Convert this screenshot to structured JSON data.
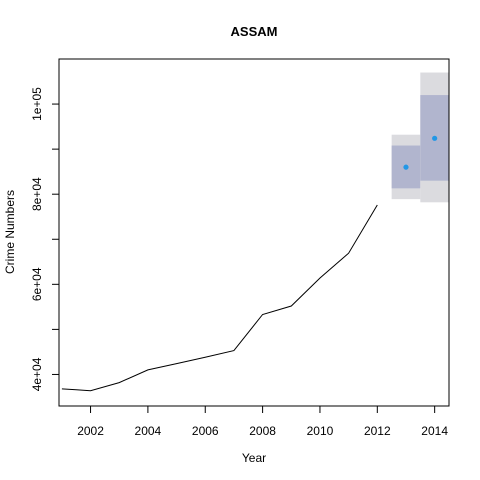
{
  "chart_data": {
    "type": "line",
    "title": "ASSAM",
    "xlabel": "Year",
    "ylabel": "Crime Numbers",
    "xlim": [
      2000.9,
      2014.5
    ],
    "ylim": [
      33000,
      110000
    ],
    "x_ticks": [
      2002,
      2004,
      2006,
      2008,
      2010,
      2012,
      2014
    ],
    "x_tick_labels": [
      "2002",
      "2004",
      "2006",
      "2008",
      "2010",
      "2012",
      "2014"
    ],
    "y_ticks": [
      40000,
      50000,
      60000,
      70000,
      80000,
      90000,
      100000
    ],
    "y_tick_labels": [
      "4e+04",
      "",
      "6e+04",
      "",
      "8e+04",
      "",
      "1e+05"
    ],
    "series": [
      {
        "x": [
          2001,
          2001.5,
          2002,
          2003,
          2004,
          2005,
          2006,
          2007,
          2008,
          2009,
          2010,
          2011,
          2012
        ],
        "y": [
          36800,
          36600,
          36400,
          38200,
          41000,
          42400,
          43800,
          45300,
          53300,
          55200,
          61400,
          66900,
          77600
        ]
      }
    ],
    "forecast": [
      {
        "x": 2013,
        "point": 86000,
        "lo80": 81300,
        "hi80": 90800,
        "lo95": 78900,
        "hi95": 93200
      },
      {
        "x": 2014,
        "point": 92400,
        "lo80": 83000,
        "hi80": 102000,
        "lo95": 78200,
        "hi95": 107000
      }
    ],
    "colors": {
      "line": "#000000",
      "band80": "#b1b5ce",
      "band95": "#dbdbdf",
      "point": "#2297e6"
    },
    "grid": false,
    "legend": "none"
  }
}
